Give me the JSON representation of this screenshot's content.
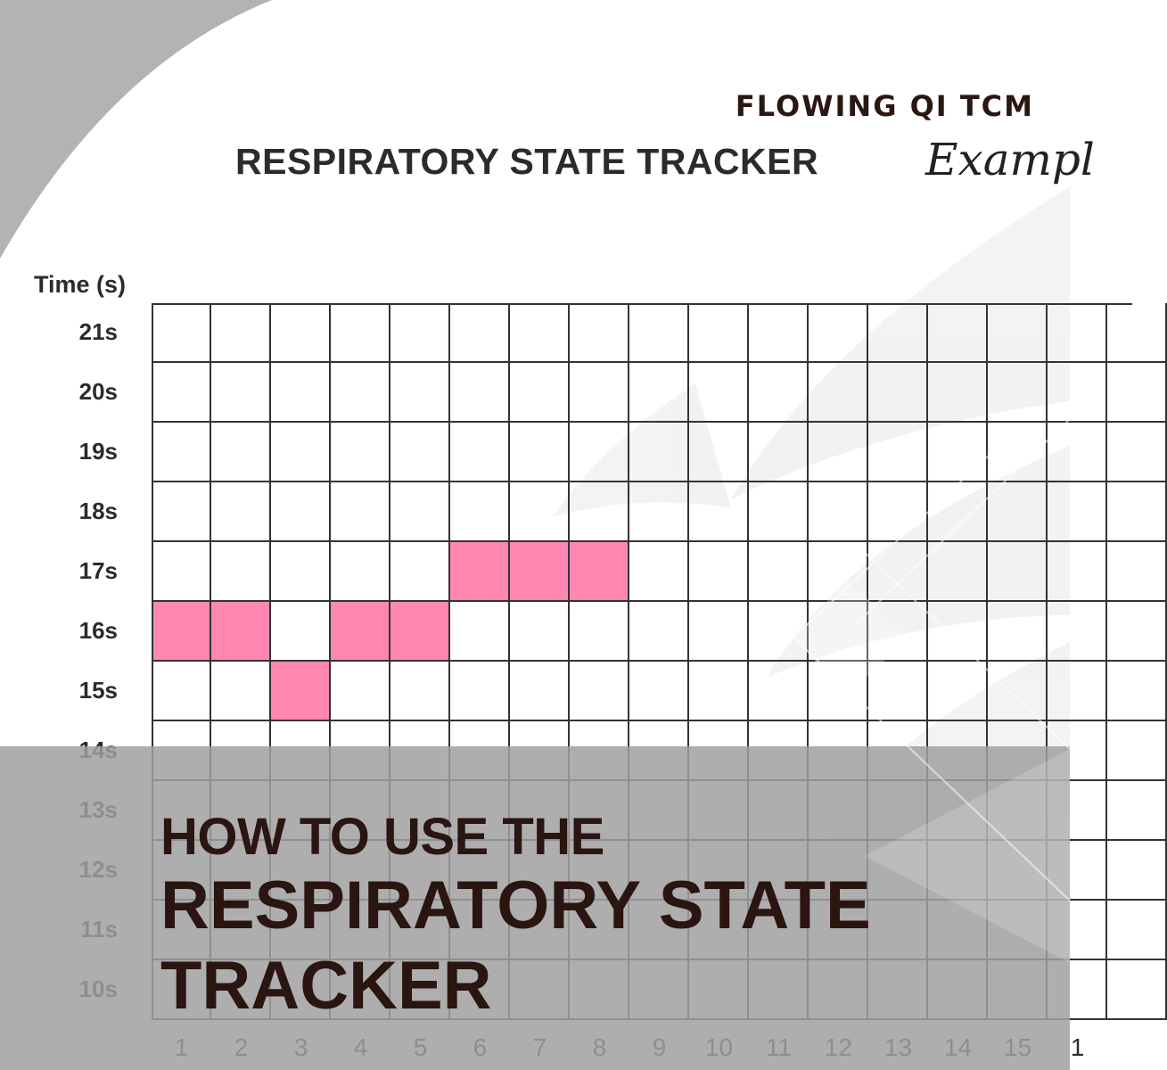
{
  "brand": {
    "name": "FLOWING QI TCM"
  },
  "document": {
    "title": "RESPIRATORY STATE TRACKER",
    "example_label": "Exampl",
    "y_axis_label": "Time (s)",
    "row_labels": [
      "21s",
      "20s",
      "19s",
      "18s",
      "17s",
      "16s",
      "15s",
      "14s",
      "13s",
      "12s",
      "11s",
      "10s"
    ],
    "column_labels": [
      "1",
      "2",
      "3",
      "4",
      "5",
      "6",
      "7",
      "8",
      "9",
      "10",
      "11",
      "12",
      "13",
      "14",
      "15",
      "1"
    ],
    "marked_cells": [
      {
        "column": 1,
        "time": "16s"
      },
      {
        "column": 2,
        "time": "16s"
      },
      {
        "column": 3,
        "time": "15s"
      },
      {
        "column": 4,
        "time": "16s"
      },
      {
        "column": 5,
        "time": "16s"
      },
      {
        "column": 6,
        "time": "17s"
      },
      {
        "column": 7,
        "time": "17s"
      },
      {
        "column": 8,
        "time": "17s"
      }
    ],
    "mark_color": "#ff87b2"
  },
  "banner": {
    "line1": "HOW TO USE THE",
    "line2": "RESPIRATORY STATE",
    "line3": "TRACKER"
  },
  "colors": {
    "headline": "#2a1510",
    "banner_overlay": "#a0a0a0",
    "corner_swoosh": "#b3b3b3"
  }
}
